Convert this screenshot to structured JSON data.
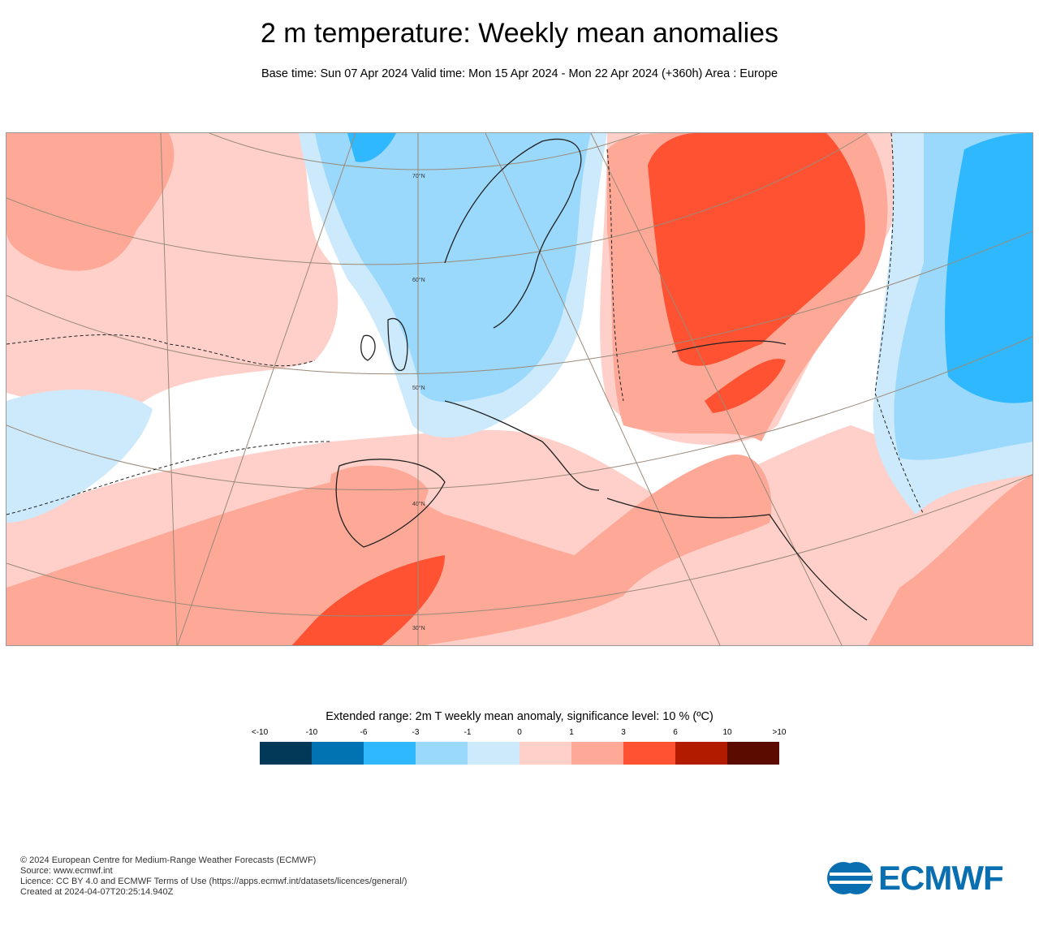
{
  "title": "2 m temperature: Weekly mean anomalies",
  "subtitle": "Base time: Sun 07 Apr 2024 Valid time: Mon 15 Apr 2024 - Mon 22 Apr 2024 (+360h) Area : Europe",
  "map": {
    "area": "Europe",
    "latitude_labels": [
      "70°N",
      "60°N",
      "50°N",
      "40°N",
      "30°N"
    ]
  },
  "legend": {
    "title": "Extended range: 2m T weekly mean anomaly, significance level: 10 % (ºC)",
    "ticks": [
      "<-10",
      "-10",
      "-6",
      "-3",
      "-1",
      "0",
      "1",
      "3",
      "6",
      "10",
      ">10"
    ],
    "colors": [
      "#023858",
      "#0173b2",
      "#2fb8fe",
      "#9ad9fc",
      "#cdeafc",
      "#fed0c9",
      "#fea897",
      "#fe5233",
      "#b21b00",
      "#5c0b00"
    ]
  },
  "footer": {
    "lines": [
      "© 2024 European Centre for Medium-Range Weather Forecasts (ECMWF)",
      "Source: www.ecmwf.int",
      "Licence: CC BY 4.0 and ECMWF Terms of Use (https://apps.ecmwf.int/datasets/licences/general/)",
      "Created at 2024-04-07T20:25:14.940Z"
    ],
    "logo": "ECMWF"
  }
}
